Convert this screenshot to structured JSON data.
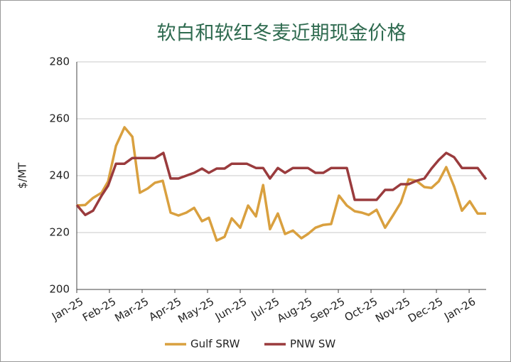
{
  "chart_data": {
    "type": "line",
    "title": "软白和软红冬麦近期现金价格",
    "y_label": "$/MT",
    "xlim": [
      0,
      12.52
    ],
    "xticks": [
      {
        "value": 0,
        "label": "Jan-25"
      },
      {
        "value": 1,
        "label": "Feb-25"
      },
      {
        "value": 2,
        "label": "Mar-25"
      },
      {
        "value": 3,
        "label": "Apr-25"
      },
      {
        "value": 4,
        "label": "May-25"
      },
      {
        "value": 5,
        "label": "Jun-25"
      },
      {
        "value": 6,
        "label": "Jul-25"
      },
      {
        "value": 7,
        "label": "Aug-25"
      },
      {
        "value": 8,
        "label": "Sep-25"
      },
      {
        "value": 9,
        "label": "Oct-25"
      },
      {
        "value": 10,
        "label": "Nov-25"
      },
      {
        "value": 11,
        "label": "Dec-25"
      },
      {
        "value": 12,
        "label": "Jan-26"
      }
    ],
    "ylim": [
      200,
      280
    ],
    "yticks": [
      200,
      220,
      240,
      260,
      280
    ],
    "grid": true,
    "legend": "bottom",
    "series": [
      {
        "name": "Gulf SRW",
        "color": "#d9a03f",
        "x": [
          0,
          0.26,
          0.5,
          0.76,
          0.96,
          1.2,
          1.46,
          1.7,
          1.93,
          2.17,
          2.39,
          2.63,
          2.87,
          3.11,
          3.35,
          3.59,
          3.83,
          4.04,
          4.28,
          4.52,
          4.74,
          5,
          5.24,
          5.48,
          5.7,
          5.91,
          6.15,
          6.37,
          6.61,
          6.87,
          7.07,
          7.3,
          7.54,
          7.78,
          8.02,
          8.26,
          8.5,
          8.72,
          8.93,
          9.17,
          9.43,
          9.67,
          9.91,
          10.15,
          10.39,
          10.63,
          10.85,
          11.07,
          11.3,
          11.54,
          11.78,
          12.02,
          12.26,
          12.52
        ],
        "values": [
          229.5,
          229.7,
          232.2,
          234,
          238,
          250.5,
          257,
          253.7,
          234,
          235.5,
          237.5,
          238.2,
          227,
          226,
          227,
          228.7,
          224,
          225.2,
          217.2,
          218.5,
          225,
          221.7,
          229.5,
          225.7,
          236.7,
          221.2,
          226.7,
          219.5,
          220.7,
          218,
          219.5,
          221.7,
          222.7,
          223,
          233,
          229.5,
          227.5,
          227,
          226.2,
          228,
          221.7,
          226,
          230.5,
          238.7,
          238.2,
          236,
          235.7,
          238,
          243,
          236.2,
          227.7,
          231,
          226.7,
          226.7
        ]
      },
      {
        "name": "PNW SW",
        "color": "#9a3b3d",
        "x": [
          0,
          0.26,
          0.5,
          0.76,
          0.96,
          1.2,
          1.46,
          1.7,
          1.93,
          2.39,
          2.65,
          2.87,
          3.11,
          3.35,
          3.59,
          3.83,
          4.04,
          4.28,
          4.52,
          4.74,
          5.2,
          5.48,
          5.7,
          5.91,
          6.15,
          6.37,
          6.61,
          7.07,
          7.3,
          7.54,
          7.78,
          8.26,
          8.5,
          9.17,
          9.43,
          9.67,
          9.91,
          10.15,
          10.39,
          10.63,
          10.85,
          11.07,
          11.3,
          11.54,
          11.78,
          12.26,
          12.52
        ],
        "values": [
          229.7,
          226.2,
          227.7,
          233,
          236.5,
          244.2,
          244.2,
          246.2,
          246.2,
          246.2,
          248,
          239,
          239,
          240,
          241,
          242.5,
          241,
          242.5,
          242.5,
          244.2,
          244.2,
          242.7,
          242.7,
          239,
          242.7,
          241,
          242.7,
          242.7,
          241,
          241,
          242.7,
          242.7,
          231.5,
          231.5,
          235,
          235,
          237,
          237,
          238.2,
          239,
          242.5,
          245.5,
          248,
          246.5,
          242.7,
          242.7,
          238.7
        ]
      }
    ]
  }
}
